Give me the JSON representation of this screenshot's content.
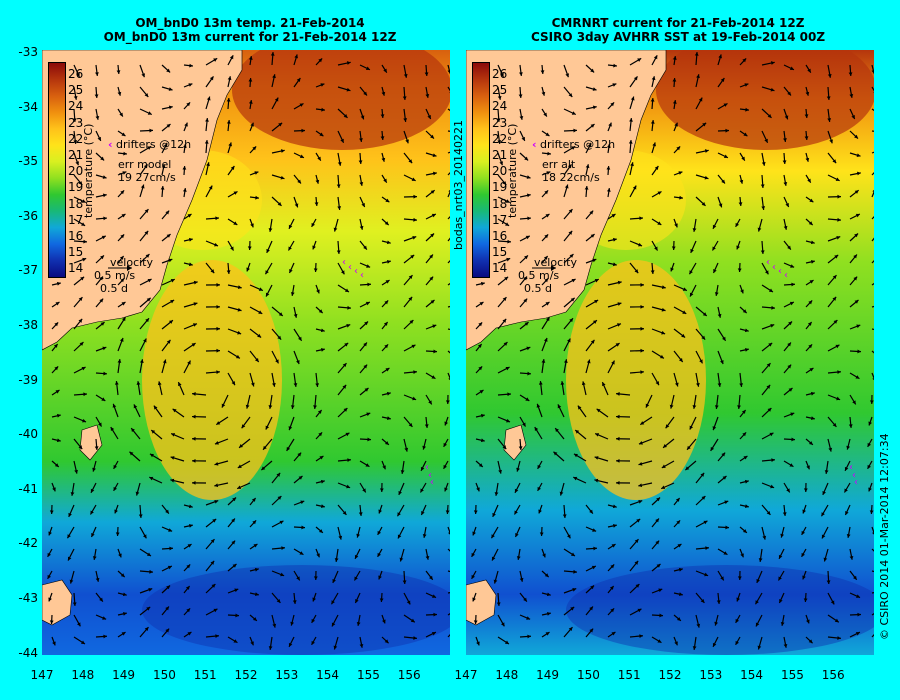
{
  "left_panel": {
    "title_line1": "OM_bnD0 13m temp. 21-Feb-2014",
    "title_line2": "OM_bnD0 13m current for 21-Feb-2014 12Z",
    "drifters_label": "drifters @12h",
    "err_label": "err model",
    "err_value": "19 27cm/s",
    "velocity_label": "velocity",
    "velocity_scale": "0.5 m/s",
    "velocity_time": "0.5 d"
  },
  "right_panel": {
    "title_line1": "CMRNRT current for 21-Feb-2014 12Z",
    "title_line2": "CSIRO 3day AVHRR SST at 19-Feb-2014 00Z",
    "drifters_label": "drifters @12h",
    "err_label": "err alt",
    "err_value": "18 22cm/s",
    "velocity_label": "velocity",
    "velocity_scale": "0.5 m/s",
    "velocity_time": "0.5 d"
  },
  "colorbar": {
    "label": "temperature (°C)",
    "ticks": [
      "26",
      "25",
      "24",
      "23",
      "22",
      "21",
      "20",
      "19",
      "18",
      "17",
      "16",
      "15",
      "14"
    ],
    "colors": [
      "#8b0a0a",
      "#b5350d",
      "#d8600f",
      "#f0900f",
      "#ffc21a",
      "#ffe31a",
      "#d8f020",
      "#90e020",
      "#30c830",
      "#18b878",
      "#10a8d8",
      "#1068e0",
      "#1030b0",
      "#0a0a80"
    ]
  },
  "y_ticks": [
    "-33",
    "-34",
    "-35",
    "-36",
    "-37",
    "-38",
    "-39",
    "-40",
    "-41",
    "-42",
    "-43",
    "-44"
  ],
  "x_ticks": [
    "147",
    "148",
    "149",
    "150",
    "151",
    "152",
    "153",
    "154",
    "155",
    "156"
  ],
  "side_label_middle": "bodas_nrt03_20140221",
  "side_label_right": "© CSIRO 2014   01-Mar-2014 12:07:34",
  "colors": {
    "background": "#00ffff",
    "land": "#ffc896",
    "drifter": "#cc00ff",
    "arrow": "#000000"
  }
}
